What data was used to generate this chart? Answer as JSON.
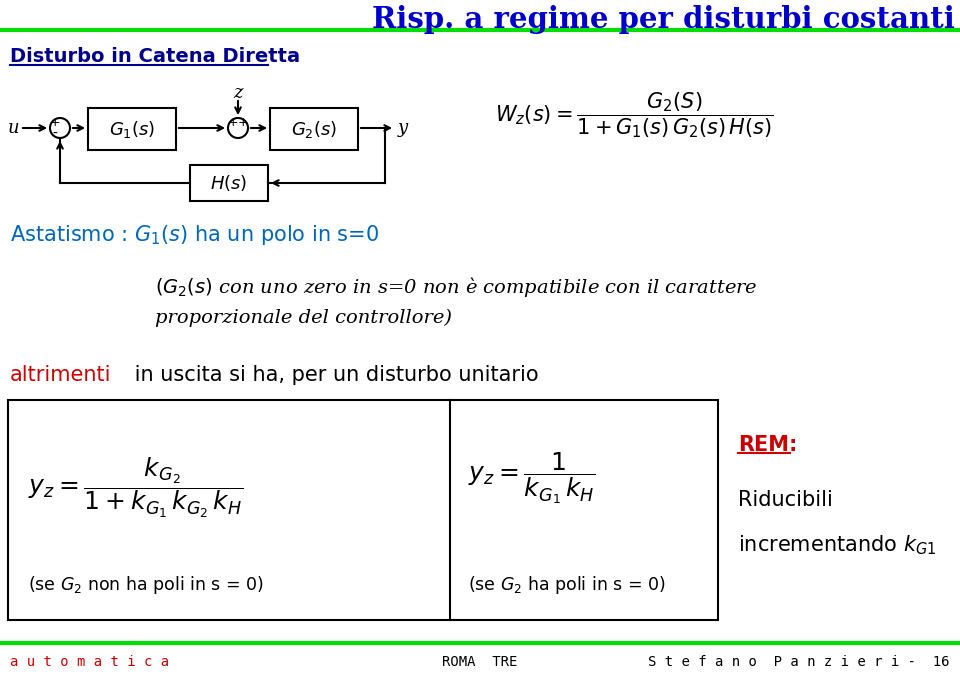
{
  "title": "Risp. a regime per disturbi costanti",
  "title_color": "#0000CC",
  "bg_color": "#FFFFFF",
  "green_color": "#00DD00",
  "footer_color_red": "#CC0000",
  "footer_left": "a u t o m a t i c a",
  "footer_center": "ROMA  TRE",
  "footer_right": "S t e f a n o  P a n z i e r i -  16",
  "section_title": "Disturbo in Catena Diretta",
  "blue_dark": "#00008B",
  "astatismo_color": "#0066BB",
  "altrimenti_color": "#CC0000",
  "rem_color": "#CC0000",
  "black": "#000000"
}
